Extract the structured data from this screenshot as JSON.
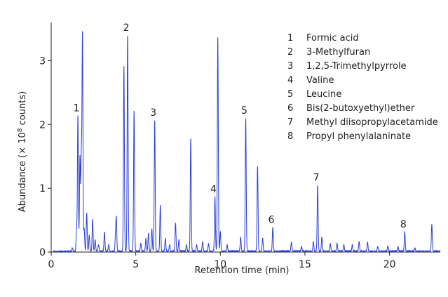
{
  "chart_data": {
    "type": "line",
    "xlabel": "Retention time (min)",
    "ylabel_prefix": "Abundance (× 10",
    "ylabel_exponent": "8",
    "ylabel_suffix": " counts)",
    "xlim": [
      0,
      23
    ],
    "ylim": [
      0,
      3.6
    ],
    "xticks": [
      "0",
      "5",
      "10",
      "15",
      "20"
    ],
    "xtick_values": [
      0,
      5,
      10,
      15,
      20
    ],
    "yticks": [
      "0",
      "1",
      "2",
      "3"
    ],
    "ytick_values": [
      0,
      1,
      2,
      3
    ],
    "line_color": "#2a3fd6",
    "baseline": 0.015,
    "peaks": [
      [
        1.25,
        0.05
      ],
      [
        1.5,
        0.35
      ],
      [
        1.58,
        2.12
      ],
      [
        1.7,
        1.48
      ],
      [
        1.78,
        1.45
      ],
      [
        1.85,
        3.38
      ],
      [
        1.95,
        0.35
      ],
      [
        2.1,
        0.6
      ],
      [
        2.25,
        0.25
      ],
      [
        2.45,
        0.5
      ],
      [
        2.6,
        0.18
      ],
      [
        2.8,
        0.1
      ],
      [
        3.15,
        0.3
      ],
      [
        3.4,
        0.1
      ],
      [
        3.8,
        0.2
      ],
      [
        3.85,
        0.5
      ],
      [
        4.3,
        2.9
      ],
      [
        4.52,
        3.38
      ],
      [
        4.9,
        2.2
      ],
      [
        5.3,
        0.12
      ],
      [
        5.6,
        0.2
      ],
      [
        5.75,
        0.28
      ],
      [
        5.95,
        0.35
      ],
      [
        6.12,
        2.05
      ],
      [
        6.45,
        0.72
      ],
      [
        6.75,
        0.2
      ],
      [
        7.0,
        0.1
      ],
      [
        7.35,
        0.44
      ],
      [
        7.55,
        0.18
      ],
      [
        8.0,
        0.1
      ],
      [
        8.25,
        1.77
      ],
      [
        8.6,
        0.1
      ],
      [
        8.95,
        0.15
      ],
      [
        9.3,
        0.12
      ],
      [
        9.68,
        0.85
      ],
      [
        9.85,
        3.35
      ],
      [
        10.0,
        0.3
      ],
      [
        10.4,
        0.1
      ],
      [
        11.2,
        0.22
      ],
      [
        11.5,
        2.08
      ],
      [
        12.2,
        1.33
      ],
      [
        12.5,
        0.2
      ],
      [
        13.1,
        0.37
      ],
      [
        14.2,
        0.14
      ],
      [
        14.8,
        0.07
      ],
      [
        15.5,
        0.15
      ],
      [
        15.75,
        1.03
      ],
      [
        16.0,
        0.22
      ],
      [
        16.5,
        0.12
      ],
      [
        16.9,
        0.12
      ],
      [
        17.3,
        0.1
      ],
      [
        17.8,
        0.1
      ],
      [
        18.2,
        0.15
      ],
      [
        18.7,
        0.14
      ],
      [
        19.3,
        0.07
      ],
      [
        19.9,
        0.08
      ],
      [
        20.5,
        0.07
      ],
      [
        20.9,
        0.3
      ],
      [
        21.5,
        0.05
      ],
      [
        22.5,
        0.42
      ]
    ],
    "annotations": [
      {
        "label": "1",
        "x": 1.58,
        "y": 2.12
      },
      {
        "label": "2",
        "x": 4.52,
        "y": 3.38
      },
      {
        "label": "3",
        "x": 6.12,
        "y": 2.05
      },
      {
        "label": "4",
        "x": 9.68,
        "y": 0.85
      },
      {
        "label": "5",
        "x": 11.5,
        "y": 2.08
      },
      {
        "label": "6",
        "x": 13.1,
        "y": 0.37
      },
      {
        "label": "7",
        "x": 15.75,
        "y": 1.03
      },
      {
        "label": "8",
        "x": 20.9,
        "y": 0.3
      }
    ],
    "legend": [
      {
        "num": "1",
        "name": "Formic acid"
      },
      {
        "num": "2",
        "name": "3-Methylfuran"
      },
      {
        "num": "3",
        "name": "1,2,5-Trimethylpyrrole"
      },
      {
        "num": "4",
        "name": "Valine"
      },
      {
        "num": "5",
        "name": "Leucine"
      },
      {
        "num": "6",
        "name": "Bis(2-butoxyethyl)ether"
      },
      {
        "num": "7",
        "name": "Methyl diisopropylacetamide"
      },
      {
        "num": "8",
        "name": "Propyl phenylalaninate"
      }
    ],
    "legend_position": "top-right",
    "grid": false
  }
}
